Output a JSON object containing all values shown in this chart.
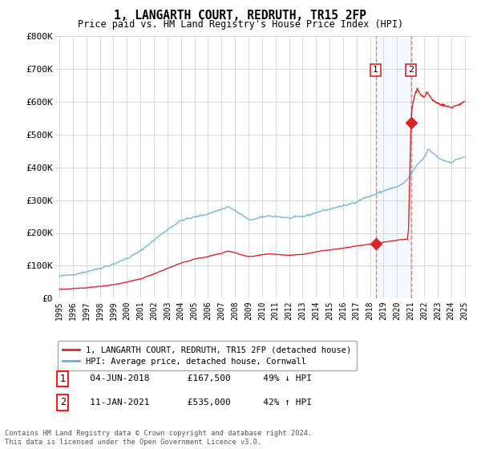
{
  "title": "1, LANGARTH COURT, REDRUTH, TR15 2FP",
  "subtitle": "Price paid vs. HM Land Registry's House Price Index (HPI)",
  "ylim": [
    0,
    800000
  ],
  "yticks": [
    0,
    100000,
    200000,
    300000,
    400000,
    500000,
    600000,
    700000,
    800000
  ],
  "ytick_labels": [
    "£0",
    "£100K",
    "£200K",
    "£300K",
    "£400K",
    "£500K",
    "£600K",
    "£700K",
    "£800K"
  ],
  "xlim_start": 1994.7,
  "xlim_end": 2025.5,
  "transaction1_date": 2018.42,
  "transaction1_price": 167500,
  "transaction1_label": "1",
  "transaction1_text": "04-JUN-2018",
  "transaction1_price_text": "£167,500",
  "transaction1_hpi_text": "49% ↓ HPI",
  "transaction2_date": 2021.03,
  "transaction2_price": 535000,
  "transaction2_label": "2",
  "transaction2_text": "11-JAN-2021",
  "transaction2_price_text": "£535,000",
  "transaction2_hpi_text": "42% ↑ HPI",
  "hpi_color": "#6baed6",
  "price_color": "#d62728",
  "shade_color": "#ddeeff",
  "vline_color": "#e08080",
  "grid_color": "#cccccc",
  "background_color": "#ffffff",
  "legend_label_price": "1, LANGARTH COURT, REDRUTH, TR15 2FP (detached house)",
  "legend_label_hpi": "HPI: Average price, detached house, Cornwall",
  "footer_text": "Contains HM Land Registry data © Crown copyright and database right 2024.\nThis data is licensed under the Open Government Licence v3.0."
}
